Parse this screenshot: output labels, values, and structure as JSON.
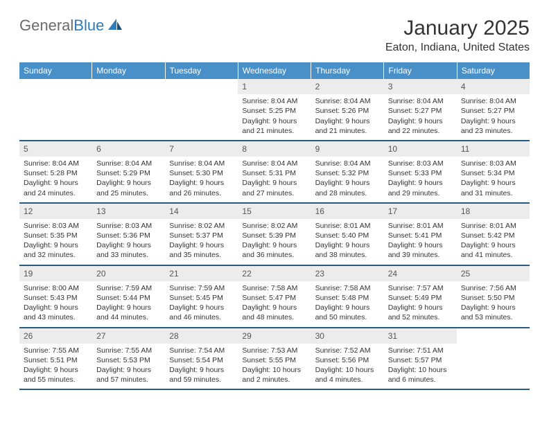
{
  "logo": {
    "text1": "General",
    "text2": "Blue"
  },
  "title": "January 2025",
  "location": "Eaton, Indiana, United States",
  "header_bg": "#4a90c8",
  "row_border": "#285a82",
  "daynum_bg": "#ececec",
  "text_color": "#333333",
  "days": [
    "Sunday",
    "Monday",
    "Tuesday",
    "Wednesday",
    "Thursday",
    "Friday",
    "Saturday"
  ],
  "weeks": [
    [
      {
        "n": "",
        "sr": "",
        "ss": "",
        "dl": ""
      },
      {
        "n": "",
        "sr": "",
        "ss": "",
        "dl": ""
      },
      {
        "n": "",
        "sr": "",
        "ss": "",
        "dl": ""
      },
      {
        "n": "1",
        "sr": "Sunrise: 8:04 AM",
        "ss": "Sunset: 5:25 PM",
        "dl": "Daylight: 9 hours and 21 minutes."
      },
      {
        "n": "2",
        "sr": "Sunrise: 8:04 AM",
        "ss": "Sunset: 5:26 PM",
        "dl": "Daylight: 9 hours and 21 minutes."
      },
      {
        "n": "3",
        "sr": "Sunrise: 8:04 AM",
        "ss": "Sunset: 5:27 PM",
        "dl": "Daylight: 9 hours and 22 minutes."
      },
      {
        "n": "4",
        "sr": "Sunrise: 8:04 AM",
        "ss": "Sunset: 5:27 PM",
        "dl": "Daylight: 9 hours and 23 minutes."
      }
    ],
    [
      {
        "n": "5",
        "sr": "Sunrise: 8:04 AM",
        "ss": "Sunset: 5:28 PM",
        "dl": "Daylight: 9 hours and 24 minutes."
      },
      {
        "n": "6",
        "sr": "Sunrise: 8:04 AM",
        "ss": "Sunset: 5:29 PM",
        "dl": "Daylight: 9 hours and 25 minutes."
      },
      {
        "n": "7",
        "sr": "Sunrise: 8:04 AM",
        "ss": "Sunset: 5:30 PM",
        "dl": "Daylight: 9 hours and 26 minutes."
      },
      {
        "n": "8",
        "sr": "Sunrise: 8:04 AM",
        "ss": "Sunset: 5:31 PM",
        "dl": "Daylight: 9 hours and 27 minutes."
      },
      {
        "n": "9",
        "sr": "Sunrise: 8:04 AM",
        "ss": "Sunset: 5:32 PM",
        "dl": "Daylight: 9 hours and 28 minutes."
      },
      {
        "n": "10",
        "sr": "Sunrise: 8:03 AM",
        "ss": "Sunset: 5:33 PM",
        "dl": "Daylight: 9 hours and 29 minutes."
      },
      {
        "n": "11",
        "sr": "Sunrise: 8:03 AM",
        "ss": "Sunset: 5:34 PM",
        "dl": "Daylight: 9 hours and 31 minutes."
      }
    ],
    [
      {
        "n": "12",
        "sr": "Sunrise: 8:03 AM",
        "ss": "Sunset: 5:35 PM",
        "dl": "Daylight: 9 hours and 32 minutes."
      },
      {
        "n": "13",
        "sr": "Sunrise: 8:03 AM",
        "ss": "Sunset: 5:36 PM",
        "dl": "Daylight: 9 hours and 33 minutes."
      },
      {
        "n": "14",
        "sr": "Sunrise: 8:02 AM",
        "ss": "Sunset: 5:37 PM",
        "dl": "Daylight: 9 hours and 35 minutes."
      },
      {
        "n": "15",
        "sr": "Sunrise: 8:02 AM",
        "ss": "Sunset: 5:39 PM",
        "dl": "Daylight: 9 hours and 36 minutes."
      },
      {
        "n": "16",
        "sr": "Sunrise: 8:01 AM",
        "ss": "Sunset: 5:40 PM",
        "dl": "Daylight: 9 hours and 38 minutes."
      },
      {
        "n": "17",
        "sr": "Sunrise: 8:01 AM",
        "ss": "Sunset: 5:41 PM",
        "dl": "Daylight: 9 hours and 39 minutes."
      },
      {
        "n": "18",
        "sr": "Sunrise: 8:01 AM",
        "ss": "Sunset: 5:42 PM",
        "dl": "Daylight: 9 hours and 41 minutes."
      }
    ],
    [
      {
        "n": "19",
        "sr": "Sunrise: 8:00 AM",
        "ss": "Sunset: 5:43 PM",
        "dl": "Daylight: 9 hours and 43 minutes."
      },
      {
        "n": "20",
        "sr": "Sunrise: 7:59 AM",
        "ss": "Sunset: 5:44 PM",
        "dl": "Daylight: 9 hours and 44 minutes."
      },
      {
        "n": "21",
        "sr": "Sunrise: 7:59 AM",
        "ss": "Sunset: 5:45 PM",
        "dl": "Daylight: 9 hours and 46 minutes."
      },
      {
        "n": "22",
        "sr": "Sunrise: 7:58 AM",
        "ss": "Sunset: 5:47 PM",
        "dl": "Daylight: 9 hours and 48 minutes."
      },
      {
        "n": "23",
        "sr": "Sunrise: 7:58 AM",
        "ss": "Sunset: 5:48 PM",
        "dl": "Daylight: 9 hours and 50 minutes."
      },
      {
        "n": "24",
        "sr": "Sunrise: 7:57 AM",
        "ss": "Sunset: 5:49 PM",
        "dl": "Daylight: 9 hours and 52 minutes."
      },
      {
        "n": "25",
        "sr": "Sunrise: 7:56 AM",
        "ss": "Sunset: 5:50 PM",
        "dl": "Daylight: 9 hours and 53 minutes."
      }
    ],
    [
      {
        "n": "26",
        "sr": "Sunrise: 7:55 AM",
        "ss": "Sunset: 5:51 PM",
        "dl": "Daylight: 9 hours and 55 minutes."
      },
      {
        "n": "27",
        "sr": "Sunrise: 7:55 AM",
        "ss": "Sunset: 5:53 PM",
        "dl": "Daylight: 9 hours and 57 minutes."
      },
      {
        "n": "28",
        "sr": "Sunrise: 7:54 AM",
        "ss": "Sunset: 5:54 PM",
        "dl": "Daylight: 9 hours and 59 minutes."
      },
      {
        "n": "29",
        "sr": "Sunrise: 7:53 AM",
        "ss": "Sunset: 5:55 PM",
        "dl": "Daylight: 10 hours and 2 minutes."
      },
      {
        "n": "30",
        "sr": "Sunrise: 7:52 AM",
        "ss": "Sunset: 5:56 PM",
        "dl": "Daylight: 10 hours and 4 minutes."
      },
      {
        "n": "31",
        "sr": "Sunrise: 7:51 AM",
        "ss": "Sunset: 5:57 PM",
        "dl": "Daylight: 10 hours and 6 minutes."
      },
      {
        "n": "",
        "sr": "",
        "ss": "",
        "dl": ""
      }
    ]
  ]
}
